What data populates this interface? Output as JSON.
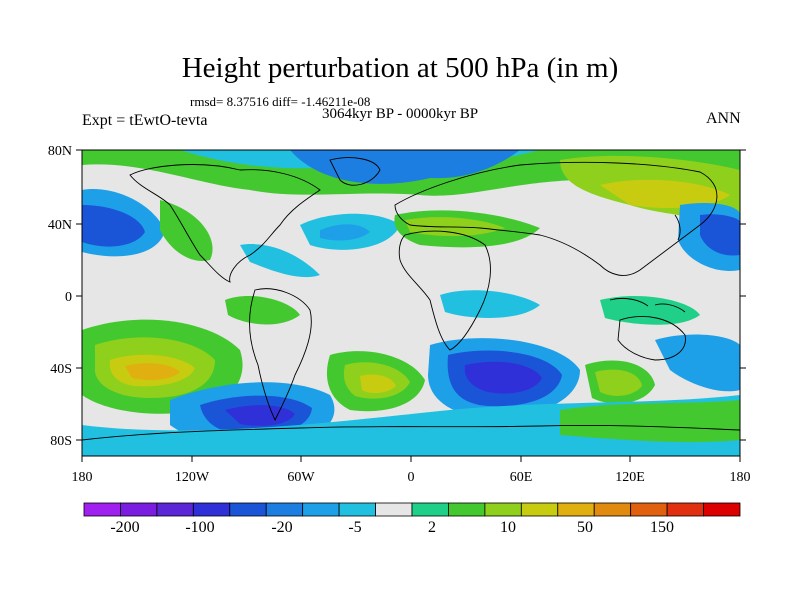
{
  "header": {
    "title": "Height perturbation at 500 hPa (in m)",
    "stats": "rmsd= 8.37516 diff= -1.46211e-08",
    "period": "3064kyr BP - 0000kyr BP",
    "experiment": "Expt = tEwtO-tevta",
    "season": "ANN"
  },
  "axes": {
    "lat_labels": [
      "80N",
      "40N",
      "0",
      "40S",
      "80S"
    ],
    "lon_labels": [
      "180",
      "120W",
      "60W",
      "0",
      "60E",
      "120E",
      "180"
    ]
  },
  "colorbar": {
    "labels": [
      "-200",
      "-100",
      "-20",
      "-5",
      "2",
      "10",
      "50",
      "150"
    ],
    "colors": [
      "#a020f0",
      "#7a1de0",
      "#5a26d6",
      "#3030d8",
      "#1a55d8",
      "#1c7ee0",
      "#1ea0e8",
      "#22c0e0",
      "#e6e6e6",
      "#20d088",
      "#44c830",
      "#8ed01c",
      "#c8cc10",
      "#e0b010",
      "#e08a10",
      "#e06010",
      "#e03010",
      "#dd0000"
    ]
  },
  "colors": {
    "land_outline": "#000000",
    "background": "#e6e6e6"
  }
}
